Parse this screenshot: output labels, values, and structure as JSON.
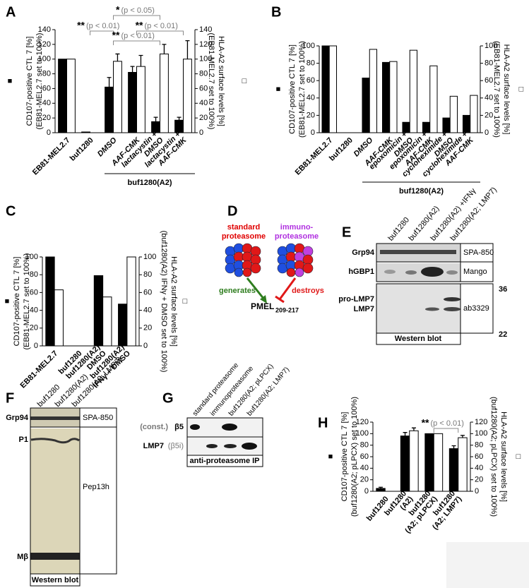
{
  "chart_data": [
    {
      "panel": "A",
      "type": "bar",
      "categories": [
        [
          "EB81-MEL2.7"
        ],
        [
          "buf1280"
        ],
        [
          "DMSO"
        ],
        [
          "AAF-CMK"
        ],
        [
          "lactacystin +",
          "DMSO"
        ],
        [
          "lactacystin +",
          "AAF-CMK"
        ]
      ],
      "series": [
        {
          "color": "#000000",
          "values": [
            100,
            1,
            62,
            82,
            15,
            17
          ],
          "errors": [
            null,
            null,
            13,
            8,
            6,
            4
          ]
        },
        {
          "color": "#ffffff",
          "axis": "y2",
          "values": [
            100,
            0,
            97,
            90,
            107,
            100
          ],
          "errors": [
            null,
            null,
            10,
            15,
            13,
            25
          ]
        }
      ],
      "ylabel": [
        "CD107-positive CTL 7 [%]",
        "(EB81-MEL2.7 set to 100%)"
      ],
      "ylabel_symbol": "■",
      "y2label": [
        "HLA-A2 surface levels [%]",
        "(EB81-MEL2.7 set to 100%)"
      ],
      "y2label_symbol": "□",
      "ylim": [
        0,
        140
      ],
      "yticks": [
        0,
        20,
        40,
        60,
        80,
        100,
        120,
        140
      ],
      "y2lim": [
        0,
        140
      ],
      "y2ticks": [
        0,
        20,
        40,
        60,
        80,
        100,
        120,
        140
      ],
      "group": "buf1280(A2)",
      "annotations": [
        {
          "stars": "**",
          "text": "(p < 0.01)"
        },
        {
          "stars": "*",
          "text": "(p < 0.05)"
        },
        {
          "stars": "**",
          "text": "(p < 0.01)"
        },
        {
          "stars": "**",
          "text": "(p < 0.01)"
        }
      ]
    },
    {
      "panel": "B",
      "type": "bar",
      "categories": [
        [
          "EB81-MEL2.7"
        ],
        [
          "buf1280"
        ],
        [
          "DMSO"
        ],
        [
          "AAF-CMK"
        ],
        [
          "epoxomicin +",
          "DMSO"
        ],
        [
          "epoxomicin +",
          "AAF-CMK"
        ],
        [
          "cycloheximide +",
          "DMSO"
        ],
        [
          "cycloheximide +",
          "AAF-CMK"
        ]
      ],
      "series": [
        {
          "color": "#000000",
          "values": [
            100,
            0,
            63,
            81,
            12,
            12,
            17,
            20
          ]
        },
        {
          "color": "#ffffff",
          "axis": "y2",
          "values": [
            100,
            0,
            96,
            82,
            95,
            77,
            42,
            43
          ]
        }
      ],
      "ylabel": [
        "CD107-positive CTL 7 [%]",
        "(EB81-MEL2.7 set to 100%)"
      ],
      "ylabel_symbol": "■",
      "y2label": [
        "HLA-A2 surface levels [%]",
        "(EB81-MEL2.7 set to 100%)"
      ],
      "y2label_symbol": "□",
      "ylim": [
        0,
        100
      ],
      "yticks": [
        0,
        20,
        40,
        60,
        80,
        100
      ],
      "y2lim": [
        0,
        100
      ],
      "y2ticks": [
        0,
        20,
        40,
        60,
        80,
        100
      ],
      "group": "buf1280(A2)"
    },
    {
      "panel": "C",
      "type": "bar",
      "categories": [
        [
          "EB81-MEL2.7"
        ],
        [
          "buf1280"
        ],
        [
          "buf1280(A2)",
          "DMSO"
        ],
        [
          "buf1280(A2)",
          "IFNγ + DMSO"
        ]
      ],
      "series": [
        {
          "color": "#000000",
          "values": [
            100,
            0,
            79,
            47
          ]
        },
        {
          "color": "#ffffff",
          "axis": "y2",
          "values": [
            63,
            0,
            55,
            100
          ]
        }
      ],
      "ylabel": [
        "CD107-positive CTL 7 [%]",
        "(EB81-MEL2.7 set to 100%)"
      ],
      "ylabel_symbol": "■",
      "y2label": [
        "HLA-A2 surface levels [%]",
        "(buf1280(A2) IFNγ + DMSO set to 100%)"
      ],
      "y2label_symbol": "□",
      "ylim": [
        0,
        100
      ],
      "yticks": [
        0,
        20,
        40,
        60,
        80,
        100
      ],
      "y2lim": [
        0,
        100
      ],
      "y2ticks": [
        0,
        20,
        40,
        60,
        80,
        100
      ]
    },
    {
      "panel": "H",
      "type": "bar",
      "categories": [
        [
          "buf1280"
        ],
        [
          "buf1280",
          "(A2)"
        ],
        [
          "buf1280",
          "(A2; pLPCX)"
        ],
        [
          "buf1280",
          "(A2; LMP7)"
        ]
      ],
      "series": [
        {
          "color": "#000000",
          "values": [
            5,
            96,
            100,
            74
          ],
          "errors": [
            2,
            6,
            null,
            5
          ]
        },
        {
          "color": "#ffffff",
          "axis": "y2",
          "values": [
            null,
            105,
            100,
            93
          ],
          "errors": [
            null,
            5,
            null,
            4
          ]
        }
      ],
      "ylabel": [
        "CD107-positive CTL 7 [%]",
        "(buf1280(A2; pLPCX) set to 100%)"
      ],
      "ylabel_symbol": "■",
      "y2label": [
        "HLA-A2 surface levels [%]",
        "(buf1280(A2; pLPCX) set to 100%)"
      ],
      "y2label_symbol": "□",
      "ylim": [
        0,
        120
      ],
      "yticks": [
        0,
        20,
        40,
        60,
        80,
        100,
        120
      ],
      "y2lim": [
        0,
        120
      ],
      "y2ticks": [
        0,
        20,
        40,
        60,
        80,
        100,
        120
      ],
      "annotations": [
        {
          "stars": "**",
          "text": "(p < 0.01)"
        }
      ]
    }
  ],
  "panel_d": {
    "label": "D",
    "standard": [
      "standard",
      "proteasome"
    ],
    "immuno": [
      "immuno-",
      "proteasome"
    ],
    "generates": "generates",
    "destroys": "destroys",
    "product": "PMEL",
    "product_sub": "209-217"
  },
  "panel_e": {
    "label": "E",
    "lanes": [
      "buf1280",
      "buf1280(A2)",
      "buf1280(A2) +IFNγ",
      "buf1280(A2; LMP7)"
    ],
    "rows": [
      "Grp94",
      "hGBP1",
      "pro-LMP7",
      "LMP7"
    ],
    "antibodies": [
      "SPA-850",
      "Mango",
      "ab3329"
    ],
    "markers": [
      36,
      22
    ],
    "footer": "Western blot"
  },
  "panel_f": {
    "label": "F",
    "lanes": [
      "buf1280",
      "buf1280(A2)",
      "buf1280(A2; LMP7)"
    ],
    "rows": [
      "Grp94",
      "P1",
      "Mβ"
    ],
    "antibodies": [
      "SPA-850",
      "Pep13h"
    ],
    "footer": "Western blot"
  },
  "panel_g": {
    "label": "G",
    "lanes": [
      "standard proteasome",
      "immunoproteasome",
      "buf1280(A2; pLPCX)",
      "buf1280(A2; LMP7)"
    ],
    "row1": [
      "(const.)",
      "β5"
    ],
    "row2": [
      "LMP7",
      "(β5i)"
    ],
    "footer": "anti-proteasome IP"
  }
}
